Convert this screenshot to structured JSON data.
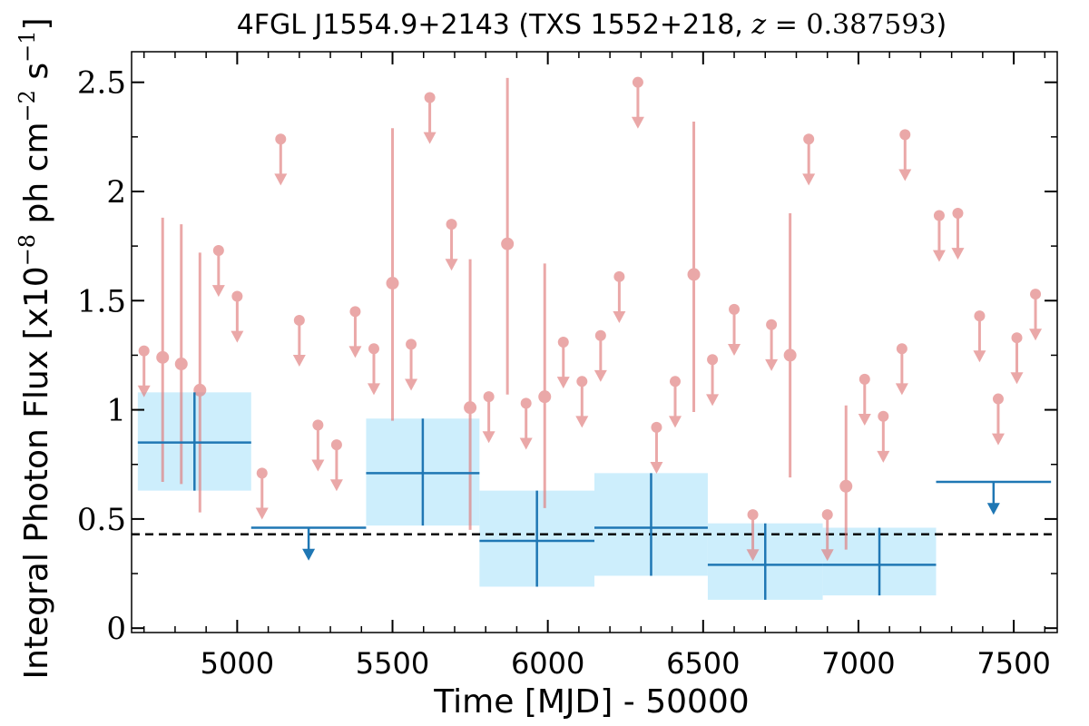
{
  "chart_data": {
    "type": "scatter",
    "title": {
      "prefix": "4FGL J1554.9+2143 (TXS 1552+218, ",
      "z_symbol": "z",
      "z_value": " = 0.387593",
      "suffix": ")"
    },
    "xlabel": "Time [MJD] - 50000",
    "ylabel": {
      "part1": "Integral Photon Flux [x10",
      "exp1": "−8",
      "part2": " ph cm",
      "exp2": "−2",
      "part3": " s",
      "exp3": "−1",
      "part4": "]"
    },
    "xlim": [
      4660,
      7640
    ],
    "ylim": [
      -0.02,
      2.64
    ],
    "xticks": [
      5000,
      5500,
      6000,
      6500,
      7000,
      7500
    ],
    "yticks": [
      0,
      0.5,
      1,
      1.5,
      2,
      2.5
    ],
    "ytick_labels": [
      "0",
      "0.5",
      "1",
      "1.5",
      "2",
      "2.5"
    ],
    "baseline": 0.43,
    "colors": {
      "fine": "#e07a7a",
      "binned": "#1f77b4",
      "band": "#cdeefc",
      "baseline": "#000000"
    },
    "fine_points": [
      {
        "x": 4700,
        "y": 1.27,
        "ul": true
      },
      {
        "x": 4760,
        "y": 1.24,
        "lo": 0.67,
        "hi": 1.88
      },
      {
        "x": 4820,
        "y": 1.21,
        "lo": 0.66,
        "hi": 1.85
      },
      {
        "x": 4880,
        "y": 1.09,
        "lo": 0.53,
        "hi": 1.72
      },
      {
        "x": 4940,
        "y": 1.73,
        "ul": true
      },
      {
        "x": 5000,
        "y": 1.52,
        "ul": true
      },
      {
        "x": 5080,
        "y": 0.71,
        "ul": true
      },
      {
        "x": 5140,
        "y": 2.24,
        "ul": true
      },
      {
        "x": 5200,
        "y": 1.41,
        "ul": true
      },
      {
        "x": 5260,
        "y": 0.93,
        "ul": true
      },
      {
        "x": 5320,
        "y": 0.84,
        "ul": true
      },
      {
        "x": 5380,
        "y": 1.45,
        "ul": true
      },
      {
        "x": 5440,
        "y": 1.28,
        "ul": true
      },
      {
        "x": 5500,
        "y": 1.58,
        "lo": 0.95,
        "hi": 2.29
      },
      {
        "x": 5560,
        "y": 1.3,
        "ul": true
      },
      {
        "x": 5620,
        "y": 2.43,
        "ul": true
      },
      {
        "x": 5690,
        "y": 1.85,
        "ul": true
      },
      {
        "x": 5750,
        "y": 1.01,
        "lo": 0.45,
        "hi": 1.69
      },
      {
        "x": 5810,
        "y": 1.06,
        "ul": true
      },
      {
        "x": 5870,
        "y": 1.76,
        "lo": 1.07,
        "hi": 2.52
      },
      {
        "x": 5930,
        "y": 1.03,
        "ul": true
      },
      {
        "x": 5990,
        "y": 1.06,
        "lo": 0.55,
        "hi": 1.67
      },
      {
        "x": 6050,
        "y": 1.31,
        "ul": true
      },
      {
        "x": 6110,
        "y": 1.13,
        "ul": true
      },
      {
        "x": 6170,
        "y": 1.34,
        "ul": true
      },
      {
        "x": 6230,
        "y": 1.61,
        "ul": true
      },
      {
        "x": 6290,
        "y": 2.5,
        "ul": true
      },
      {
        "x": 6350,
        "y": 0.92,
        "ul": true
      },
      {
        "x": 6410,
        "y": 1.13,
        "ul": true
      },
      {
        "x": 6470,
        "y": 1.62,
        "lo": 0.99,
        "hi": 2.32
      },
      {
        "x": 6530,
        "y": 1.23,
        "ul": true
      },
      {
        "x": 6600,
        "y": 1.46,
        "ul": true
      },
      {
        "x": 6660,
        "y": 0.52,
        "ul": true
      },
      {
        "x": 6720,
        "y": 1.39,
        "ul": true
      },
      {
        "x": 6780,
        "y": 1.25,
        "lo": 0.69,
        "hi": 1.9
      },
      {
        "x": 6840,
        "y": 2.24,
        "ul": true
      },
      {
        "x": 6900,
        "y": 0.52,
        "ul": true
      },
      {
        "x": 6960,
        "y": 0.65,
        "lo": 0.36,
        "hi": 1.02
      },
      {
        "x": 7020,
        "y": 1.14,
        "ul": true
      },
      {
        "x": 7080,
        "y": 0.97,
        "ul": true
      },
      {
        "x": 7140,
        "y": 1.28,
        "ul": true
      },
      {
        "x": 7150,
        "y": 2.26,
        "ul": true
      },
      {
        "x": 7260,
        "y": 1.89,
        "ul": true
      },
      {
        "x": 7320,
        "y": 1.9,
        "ul": true
      },
      {
        "x": 7390,
        "y": 1.43,
        "ul": true
      },
      {
        "x": 7450,
        "y": 1.05,
        "ul": true
      },
      {
        "x": 7510,
        "y": 1.33,
        "ul": true
      },
      {
        "x": 7570,
        "y": 1.53,
        "ul": true
      }
    ],
    "binned_points": [
      {
        "x0": 4680,
        "x1": 5045,
        "y": 0.85,
        "lo": 0.63,
        "hi": 1.08
      },
      {
        "x0": 5045,
        "x1": 5415,
        "y": 0.46,
        "ul": true
      },
      {
        "x0": 5415,
        "x1": 5780,
        "y": 0.71,
        "lo": 0.47,
        "hi": 0.96
      },
      {
        "x0": 5780,
        "x1": 6150,
        "y": 0.4,
        "lo": 0.19,
        "hi": 0.63
      },
      {
        "x0": 6150,
        "x1": 6515,
        "y": 0.46,
        "lo": 0.24,
        "hi": 0.71
      },
      {
        "x0": 6515,
        "x1": 6885,
        "y": 0.29,
        "lo": 0.13,
        "hi": 0.48
      },
      {
        "x0": 6885,
        "x1": 7250,
        "y": 0.29,
        "lo": 0.15,
        "hi": 0.46
      },
      {
        "x0": 7250,
        "x1": 7620,
        "y": 0.67,
        "ul": true
      }
    ]
  }
}
